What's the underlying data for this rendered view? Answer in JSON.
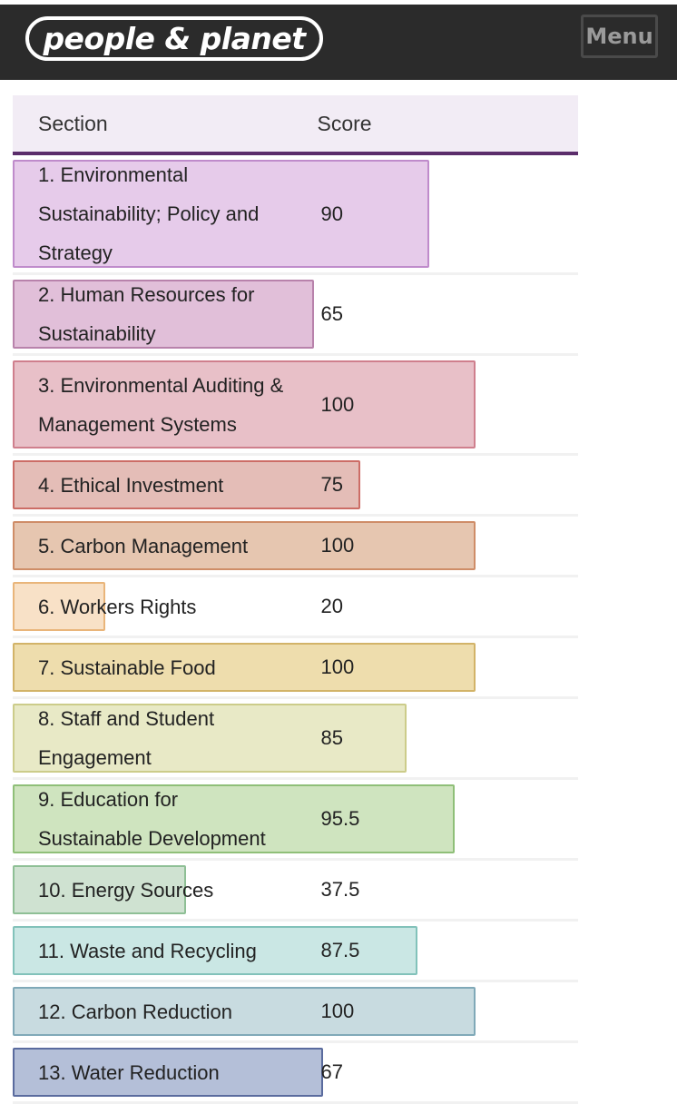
{
  "header": {
    "logo_text": "people & planet",
    "menu_label": "Menu"
  },
  "table": {
    "col_section": "Section",
    "col_score": "Score",
    "rows": [
      {
        "section": "1. Environmental Sustainability; Policy and Strategy",
        "score": "90",
        "score_value": 90,
        "fill": "#e6cbea",
        "stroke": "#bf8bcb"
      },
      {
        "section": "2. Human Resources for Sustainability",
        "score": "65",
        "score_value": 65,
        "fill": "#e1bfd9",
        "stroke": "#b882ab"
      },
      {
        "section": "3. Environmental Auditing & Management Systems",
        "score": "100",
        "score_value": 100,
        "fill": "#e8c0c8",
        "stroke": "#cf7f8d"
      },
      {
        "section": "4. Ethical Investment",
        "score": "75",
        "score_value": 75,
        "fill": "#e4bdb7",
        "stroke": "#cc6d66"
      },
      {
        "section": "5. Carbon Management",
        "score": "100",
        "score_value": 100,
        "fill": "#e6c6b0",
        "stroke": "#cf8d68"
      },
      {
        "section": "6. Workers Rights",
        "score": "20",
        "score_value": 20,
        "fill": "#f8e1c7",
        "stroke": "#e9b57a"
      },
      {
        "section": "7. Sustainable Food",
        "score": "100",
        "score_value": 100,
        "fill": "#eeddad",
        "stroke": "#d2b368"
      },
      {
        "section": "8. Staff and Student Engagement",
        "score": "85",
        "score_value": 85,
        "fill": "#e8e9c6",
        "stroke": "#cccc8a"
      },
      {
        "section": "9. Education for Sustainable Development",
        "score": "95.5",
        "score_value": 95.5,
        "fill": "#cfe4bf",
        "stroke": "#8fbf78"
      },
      {
        "section": "10. Energy Sources",
        "score": "37.5",
        "score_value": 37.5,
        "fill": "#cfe2d1",
        "stroke": "#8ebf95"
      },
      {
        "section": "11. Waste and Recycling",
        "score": "87.5",
        "score_value": 87.5,
        "fill": "#cae7e4",
        "stroke": "#82c2ba"
      },
      {
        "section": "12. Carbon Reduction",
        "score": "100",
        "score_value": 100,
        "fill": "#c8dbe0",
        "stroke": "#80a9b8"
      },
      {
        "section": "13. Water Reduction",
        "score": "67",
        "score_value": 67,
        "fill": "#b4bfd8",
        "stroke": "#5a6b9e"
      }
    ]
  }
}
